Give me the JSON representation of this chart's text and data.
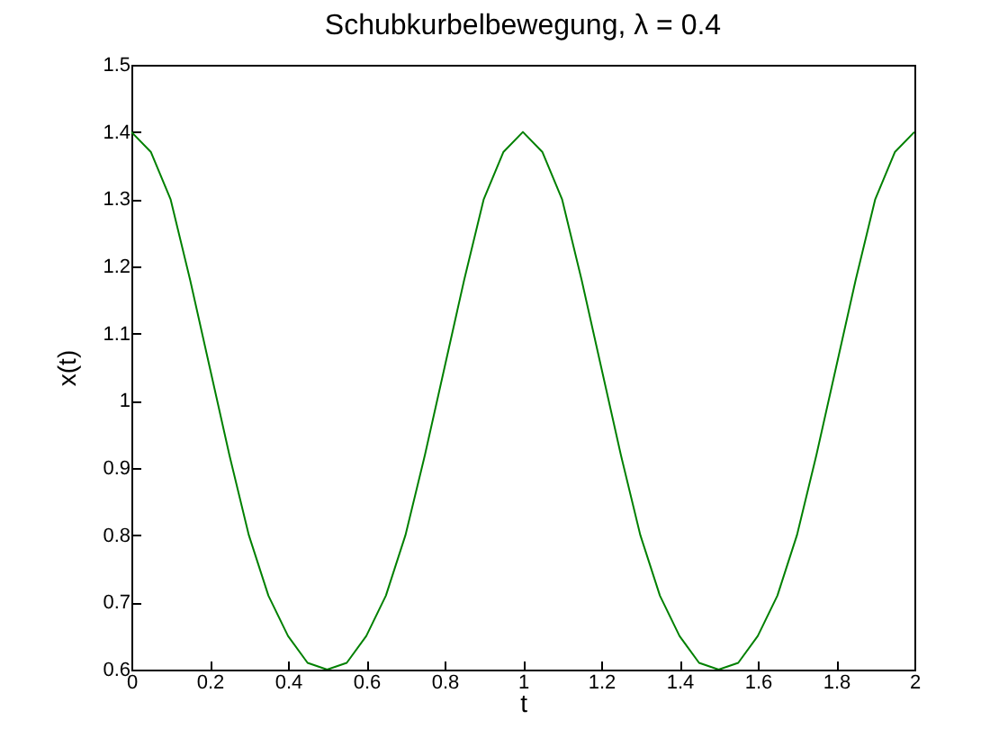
{
  "chart_data": {
    "type": "line",
    "title": "Schubkurbelbewegung, λ = 0.4",
    "xlabel": "t",
    "ylabel": "x(t)",
    "x": [
      0,
      0.05,
      0.1,
      0.15,
      0.2,
      0.25,
      0.3,
      0.35,
      0.4,
      0.45,
      0.5,
      0.55,
      0.6,
      0.65,
      0.7,
      0.75,
      0.8,
      0.85,
      0.9,
      0.95,
      1,
      1.05,
      1.1,
      1.15,
      1.2,
      1.25,
      1.3,
      1.35,
      1.4,
      1.45,
      1.5,
      1.55,
      1.6,
      1.65,
      1.7,
      1.75,
      1.8,
      1.85,
      1.9,
      1.95,
      2
    ],
    "series": [
      {
        "color": "#008000",
        "values": [
          1.4,
          1.37,
          1.3,
          1.18,
          1.05,
          0.92,
          0.8,
          0.71,
          0.65,
          0.61,
          0.6,
          0.61,
          0.65,
          0.71,
          0.8,
          0.92,
          1.05,
          1.18,
          1.3,
          1.37,
          1.4,
          1.37,
          1.3,
          1.18,
          1.05,
          0.92,
          0.8,
          0.71,
          0.65,
          0.61,
          0.6,
          0.61,
          0.65,
          0.71,
          0.8,
          0.92,
          1.05,
          1.18,
          1.3,
          1.37,
          1.4
        ]
      }
    ],
    "xlim": [
      0,
      2
    ],
    "xticks": [
      0,
      0.2,
      0.4,
      0.6,
      0.8,
      1,
      1.2,
      1.4,
      1.6,
      1.8,
      2
    ],
    "ylim": [
      0.6,
      1.5
    ],
    "yticks": [
      0.6,
      0.7,
      0.8,
      0.9,
      1,
      1.1,
      1.2,
      1.3,
      1.4,
      1.5
    ],
    "grid": false,
    "line_style": "solid"
  }
}
